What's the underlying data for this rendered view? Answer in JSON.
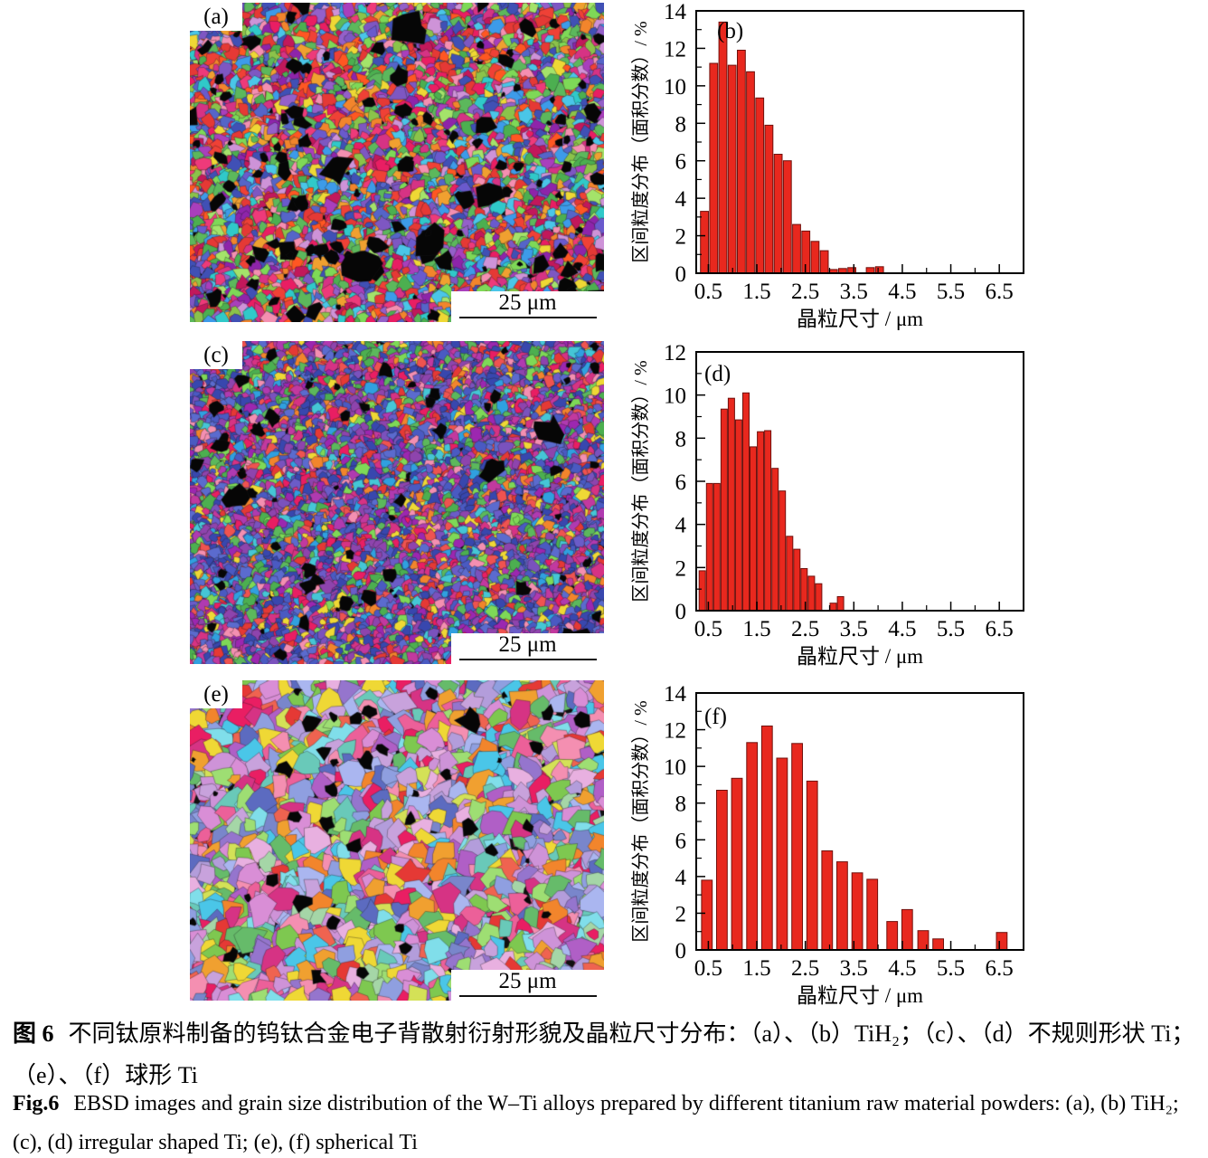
{
  "ebsd_panels": [
    {
      "label": "(a)",
      "scale_bar_label": "25 μm",
      "seed": 7,
      "grain_radius": 6,
      "spot_size": 6,
      "black_spots": 120,
      "background": "#0a0a0a",
      "palette": [
        "#4050b5",
        "#4050b5",
        "#5565c8",
        "#6a5acd",
        "#7e57c2",
        "#9460c9",
        "#a93fbc",
        "#8e24aa",
        "#c2185b",
        "#e91e63",
        "#ee3a7a",
        "#d63384",
        "#e53935",
        "#e53935",
        "#ef4136",
        "#ff5722",
        "#f2852c",
        "#5cb85c",
        "#5cb85c",
        "#4caf50",
        "#7ed957",
        "#8bc34a",
        "#a4e36a",
        "#30c9c9",
        "#4ac6e8",
        "#efd835",
        "#f0a030",
        "#ce93d8",
        "#f48fb1",
        "#3d9be9"
      ]
    },
    {
      "label": "(c)",
      "scale_bar_label": "25 μm",
      "seed": 13,
      "grain_radius": 5,
      "spot_size": 5,
      "black_spots": 70,
      "background": "#0a0a0a",
      "palette": [
        "#3847ae",
        "#3847ae",
        "#3847ae",
        "#4a5ac2",
        "#4a5ac2",
        "#5b6bce",
        "#5b6bce",
        "#6b5cc8",
        "#7a52bd",
        "#8e44ad",
        "#8e44ad",
        "#9c27b0",
        "#b03ab0",
        "#c2399f",
        "#d63384",
        "#e91e63",
        "#e53935",
        "#ef5350",
        "#5cb85c",
        "#4caf50",
        "#7ed957",
        "#45c6d6",
        "#f2852c",
        "#efd835",
        "#f48fb1",
        "#30a0e0"
      ]
    },
    {
      "label": "(e)",
      "scale_bar_label": "25 μm",
      "seed": 29,
      "grain_radius": 11,
      "spot_size": 5.5,
      "black_spots": 42,
      "background": "#101010",
      "palette": [
        "#8f9fe0",
        "#7986cb",
        "#5c6bc0",
        "#b39ddb",
        "#9575cd",
        "#ce93d8",
        "#d98ed6",
        "#b05fc6",
        "#f48fb1",
        "#ec6099",
        "#e91e63",
        "#d63384",
        "#e53935",
        "#ef6350",
        "#f2852c",
        "#f0a030",
        "#efd835",
        "#d4e157",
        "#9ede73",
        "#7ec850",
        "#66bb6a",
        "#a5d6a7",
        "#69c9b9",
        "#4ac6e8",
        "#80deea",
        "#c8a2dc",
        "#e8b0e0",
        "#aab6f0"
      ]
    }
  ],
  "chart_data": [
    {
      "type": "bar",
      "panel_label": "(b)",
      "xlabel": "晶粒尺寸 / μm",
      "ylabel": "区间粒度分布（面积分数）/ %",
      "xlim": [
        0.25,
        7.0
      ],
      "ylim": [
        0,
        14
      ],
      "xticks": [
        0.5,
        1.5,
        2.5,
        3.5,
        4.5,
        5.5,
        6.5
      ],
      "yticks": [
        0,
        2,
        4,
        6,
        8,
        10,
        12,
        14
      ],
      "grid": false,
      "legend": "none",
      "bar_color": "#e8281e",
      "bar_edge": "#70100c",
      "bar_width": 0.165,
      "bars": [
        [
          0.42,
          3.3
        ],
        [
          0.61,
          11.2
        ],
        [
          0.8,
          13.4
        ],
        [
          0.99,
          11.1
        ],
        [
          1.18,
          11.9
        ],
        [
          1.37,
          10.75
        ],
        [
          1.56,
          9.35
        ],
        [
          1.75,
          7.9
        ],
        [
          1.94,
          6.35
        ],
        [
          2.13,
          6.0
        ],
        [
          2.32,
          2.6
        ],
        [
          2.51,
          2.25
        ],
        [
          2.7,
          1.7
        ],
        [
          2.89,
          1.2
        ],
        [
          3.08,
          0.2
        ],
        [
          3.27,
          0.25
        ],
        [
          3.46,
          0.3
        ],
        [
          3.84,
          0.3
        ],
        [
          4.03,
          0.35
        ]
      ]
    },
    {
      "type": "bar",
      "panel_label": "(d)",
      "xlabel": "晶粒尺寸 / μm",
      "ylabel": "区间粒度分布（面积分数）/ %",
      "xlim": [
        0.25,
        7.0
      ],
      "ylim": [
        0,
        12
      ],
      "xticks": [
        0.5,
        1.5,
        2.5,
        3.5,
        4.5,
        5.5,
        6.5
      ],
      "yticks": [
        0,
        2,
        4,
        6,
        8,
        10,
        12
      ],
      "grid": false,
      "legend": "none",
      "bar_color": "#e8281e",
      "bar_edge": "#70100c",
      "bar_width": 0.13,
      "bars": [
        [
          0.375,
          1.85
        ],
        [
          0.525,
          5.9
        ],
        [
          0.675,
          5.9
        ],
        [
          0.825,
          9.35
        ],
        [
          0.975,
          9.85
        ],
        [
          1.125,
          8.85
        ],
        [
          1.275,
          10.1
        ],
        [
          1.425,
          7.6
        ],
        [
          1.575,
          8.3
        ],
        [
          1.725,
          8.35
        ],
        [
          1.875,
          6.6
        ],
        [
          2.025,
          5.55
        ],
        [
          2.175,
          3.45
        ],
        [
          2.325,
          2.85
        ],
        [
          2.475,
          1.95
        ],
        [
          2.625,
          1.6
        ],
        [
          2.775,
          1.25
        ],
        [
          3.075,
          0.35
        ],
        [
          3.225,
          0.65
        ]
      ]
    },
    {
      "type": "bar",
      "panel_label": "(f)",
      "xlabel": "晶粒尺寸 / μm",
      "ylabel": "区间粒度分布（面积分数）/ %",
      "xlim": [
        0.25,
        7.0
      ],
      "ylim": [
        0,
        14
      ],
      "xticks": [
        0.5,
        1.5,
        2.5,
        3.5,
        4.5,
        5.5,
        6.5
      ],
      "yticks": [
        0,
        2,
        4,
        6,
        8,
        10,
        12,
        14
      ],
      "grid": false,
      "legend": "none",
      "bar_color": "#e8281e",
      "bar_edge": "#70100c",
      "bar_width": 0.22,
      "bars": [
        [
          0.47,
          3.8
        ],
        [
          0.78,
          8.7
        ],
        [
          1.09,
          9.35
        ],
        [
          1.4,
          11.3
        ],
        [
          1.71,
          12.2
        ],
        [
          2.02,
          10.45
        ],
        [
          2.33,
          11.25
        ],
        [
          2.64,
          9.2
        ],
        [
          2.95,
          5.4
        ],
        [
          3.26,
          4.8
        ],
        [
          3.57,
          4.2
        ],
        [
          3.88,
          3.85
        ],
        [
          4.29,
          1.55
        ],
        [
          4.6,
          2.2
        ],
        [
          4.93,
          1.05
        ],
        [
          5.24,
          0.6
        ],
        [
          6.55,
          0.95
        ]
      ]
    }
  ],
  "caption": {
    "zh_prefix": "图 6",
    "zh_line1": "不同钛原料制备的钨钛合金电子背散射衍射形貌及晶粒尺寸分布：（a）、（b）TiH₂；（c）、（d）不规则形状 Ti；",
    "zh_line2": "（e）、（f）球形 Ti",
    "en_prefix": "Fig.6",
    "en_line1": "EBSD images and grain size distribution of the W–Ti alloys prepared by different titanium raw material powders: (a), (b) TiH₂;",
    "en_line2": "(c), (d) irregular shaped Ti; (e), (f) spherical Ti"
  }
}
